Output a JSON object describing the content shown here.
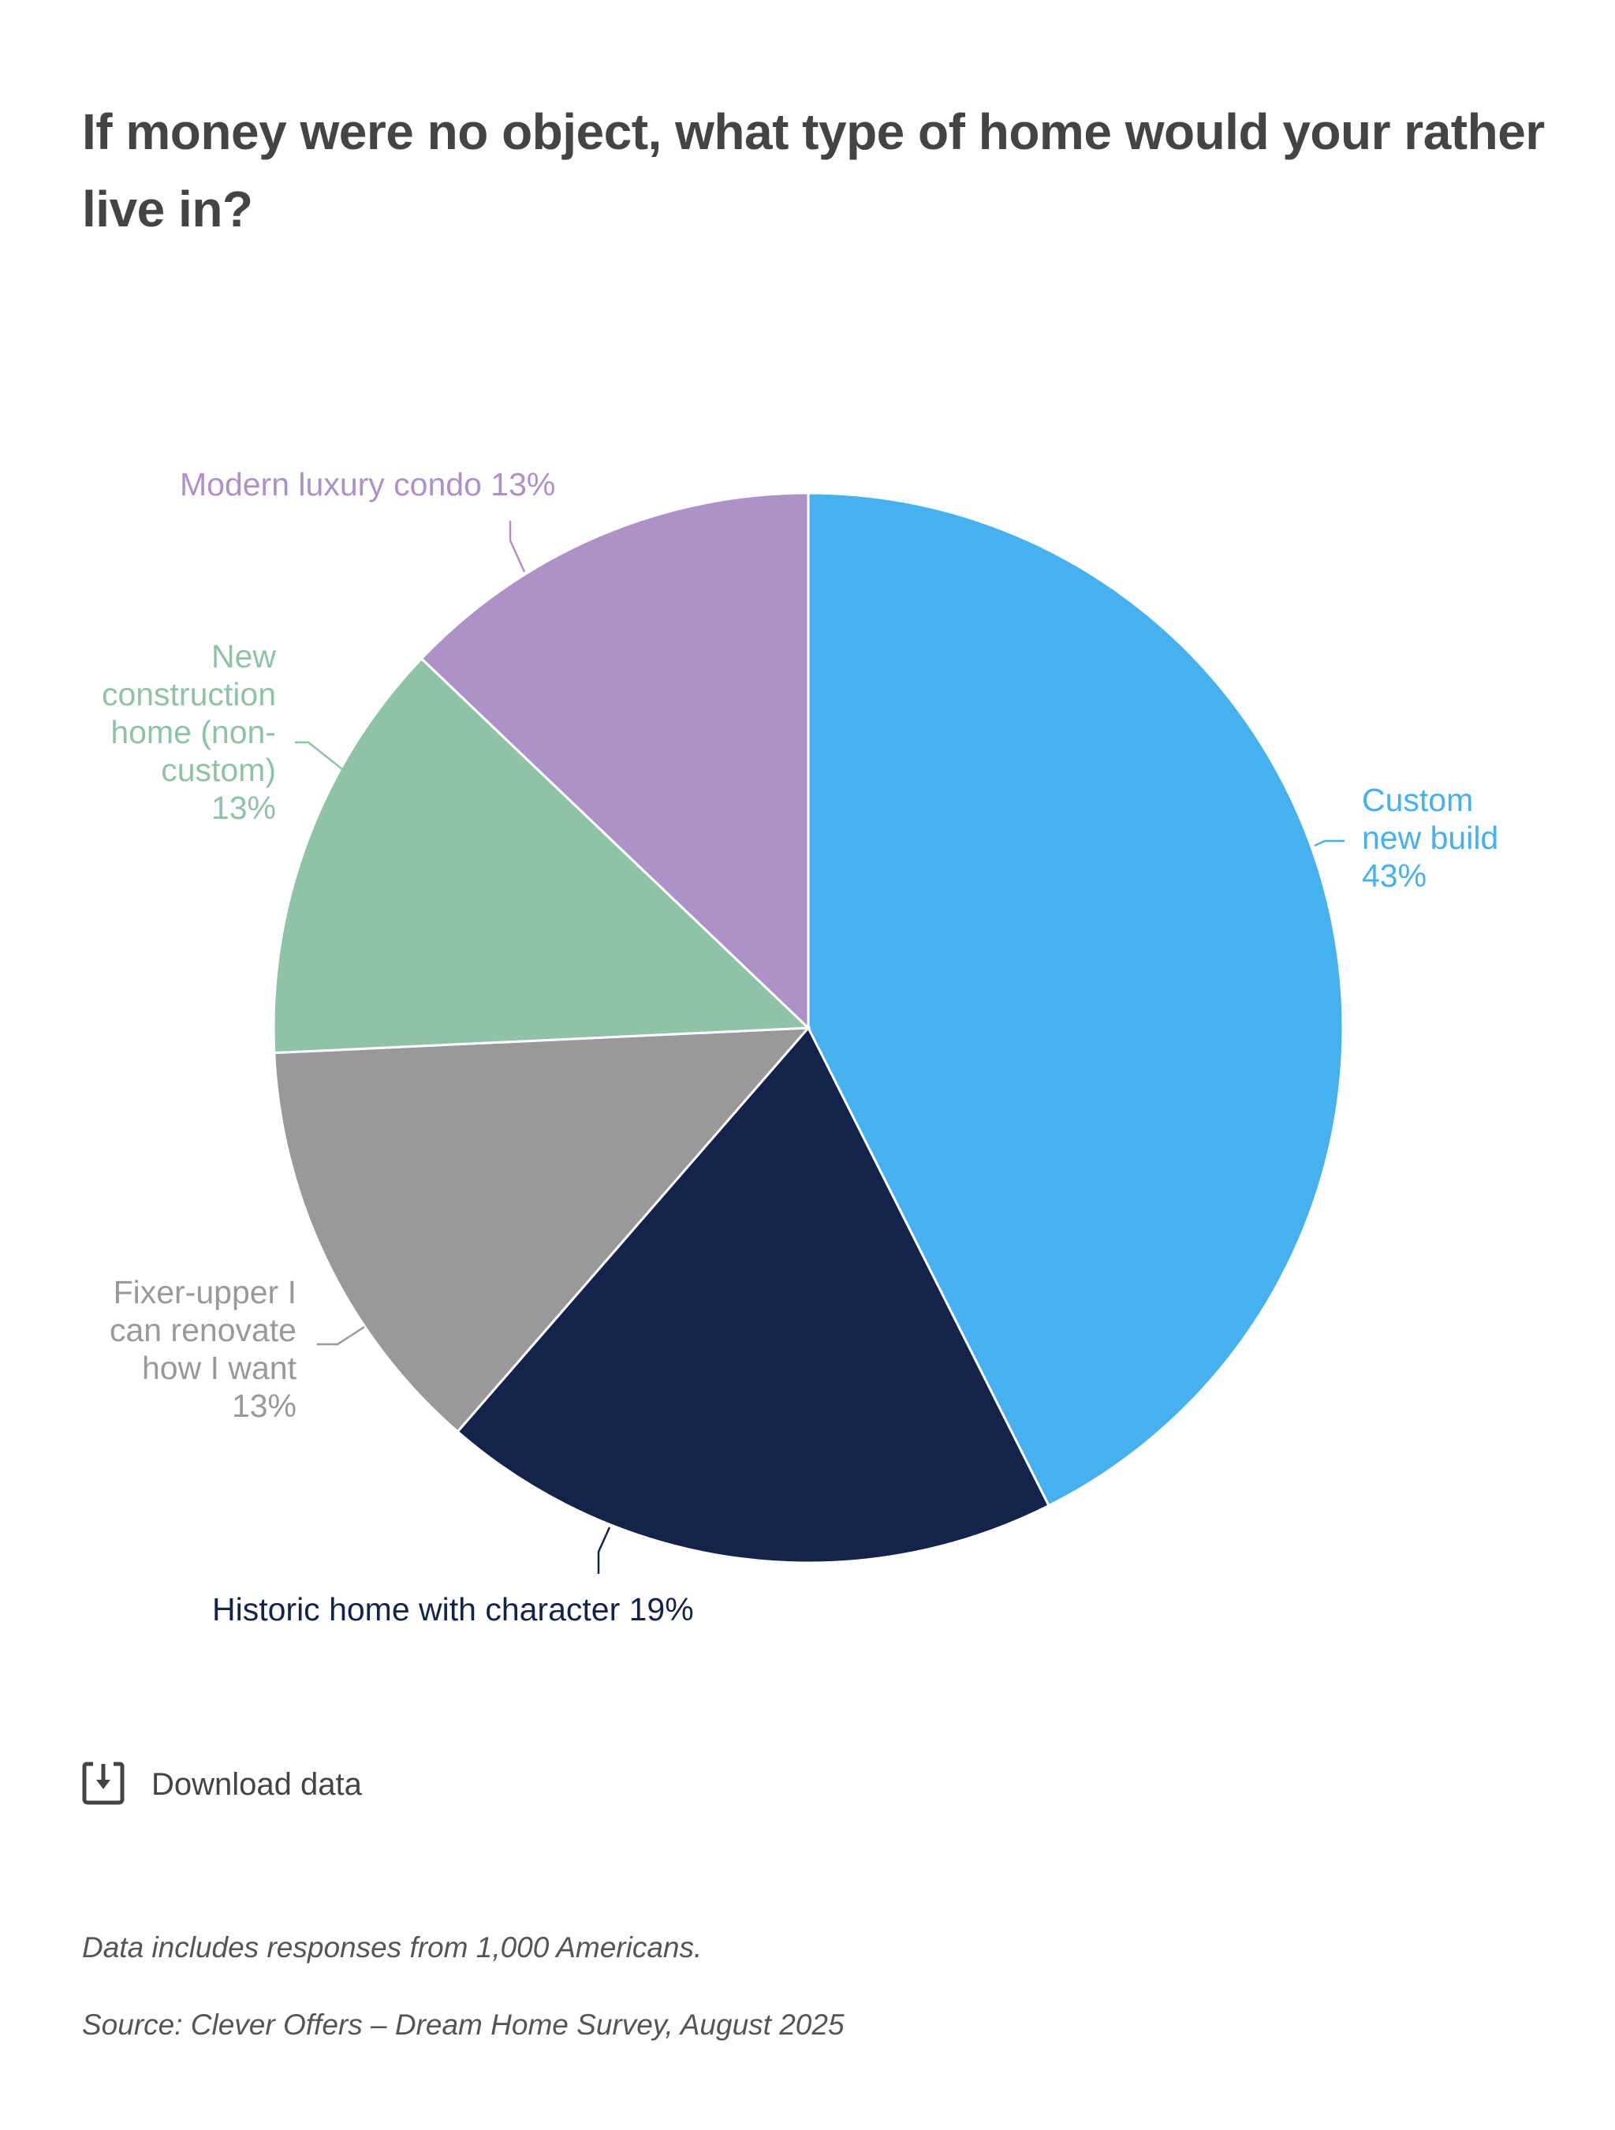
{
  "chart_data": {
    "type": "pie",
    "title": "If money were no object, what type of home would your rather live in?",
    "start_angle": "12 o'clock, clockwise",
    "slices": [
      {
        "label": "Custom new build",
        "value": 43,
        "value_label": "43%",
        "color": "#45B1EE",
        "label_lines": [
          "Custom",
          "new build",
          "43%"
        ]
      },
      {
        "label": "Historic home with character",
        "value": 19,
        "value_label": "19%",
        "color": "#14234A",
        "label_lines": [
          "Historic home with character 19%"
        ]
      },
      {
        "label": "Fixer-upper I can renovate how I want",
        "value": 13,
        "value_label": "13%",
        "color": "#999999",
        "label_lines": [
          "Fixer-upper I",
          "can renovate",
          "how I want",
          "13%"
        ]
      },
      {
        "label": "New construction home (non-custom)",
        "value": 13,
        "value_label": "13%",
        "color": "#8FC3A8",
        "label_lines": [
          "New",
          "construction",
          "home (non-",
          "custom)",
          "13%"
        ]
      },
      {
        "label": "Modern luxury condo",
        "value": 13,
        "value_label": "13%",
        "color": "#AC92C6",
        "label_lines": [
          "Modern luxury condo 13%"
        ]
      }
    ]
  },
  "download": {
    "label": "Download data",
    "icon": "download-icon"
  },
  "footer": {
    "note": "Data includes responses from 1,000 Americans.",
    "source": "Source: Clever Offers – Dream Home Survey, August 2025"
  }
}
